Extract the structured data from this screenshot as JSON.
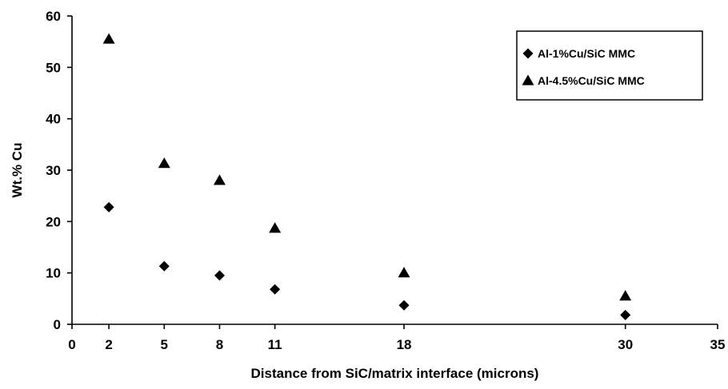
{
  "chart_data": {
    "type": "scatter",
    "xlabel": "Distance from SiC/matrix interface (microns)",
    "ylabel": "Wt.% Cu",
    "xlim": [
      0,
      35
    ],
    "ylim": [
      0,
      60
    ],
    "x_ticks": [
      0,
      2,
      5,
      8,
      11,
      18,
      30,
      35
    ],
    "y_ticks": [
      0,
      10,
      20,
      30,
      40,
      50,
      60
    ],
    "grid": false,
    "legend_position": "top-right",
    "series": [
      {
        "name": "Al-1%Cu/SiC MMC",
        "marker": "diamond",
        "color": "#000000",
        "points": [
          {
            "x": 2,
            "y": 22.8
          },
          {
            "x": 5,
            "y": 11.3
          },
          {
            "x": 8,
            "y": 9.5
          },
          {
            "x": 11,
            "y": 6.8
          },
          {
            "x": 18,
            "y": 3.7
          },
          {
            "x": 30,
            "y": 1.8
          }
        ]
      },
      {
        "name": "Al-4.5%Cu/SiC MMC",
        "marker": "triangle",
        "color": "#000000",
        "points": [
          {
            "x": 2,
            "y": 55.5
          },
          {
            "x": 5,
            "y": 31.3
          },
          {
            "x": 8,
            "y": 28.0
          },
          {
            "x": 11,
            "y": 18.7
          },
          {
            "x": 18,
            "y": 10.0
          },
          {
            "x": 30,
            "y": 5.5
          }
        ]
      }
    ]
  }
}
